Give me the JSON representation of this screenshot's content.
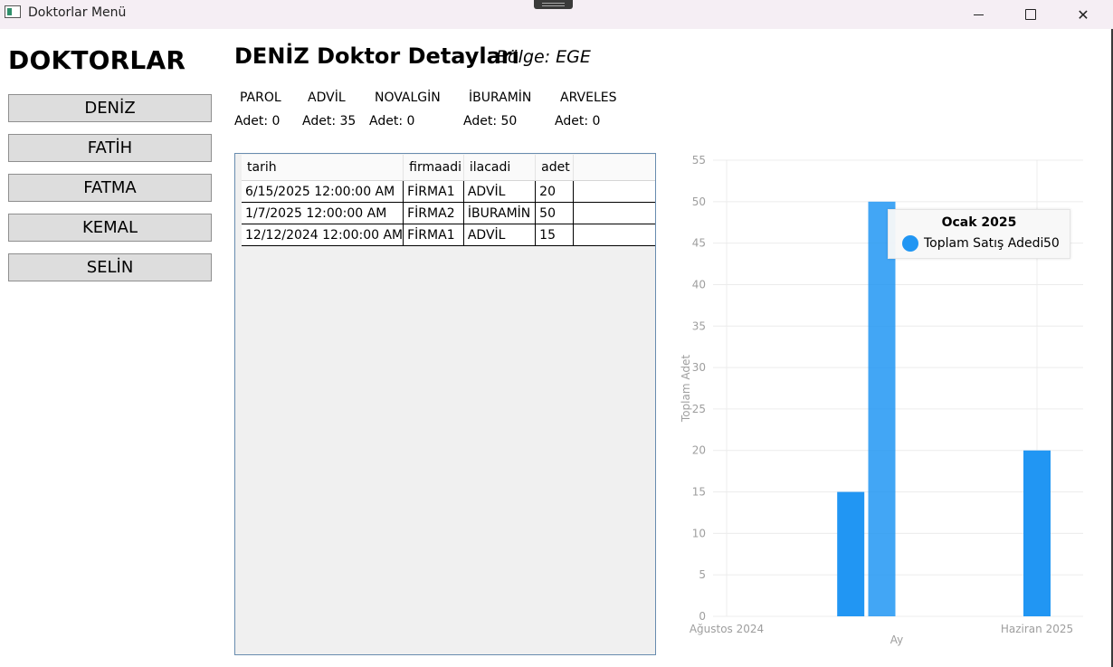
{
  "window": {
    "title": "Doktorlar Menü",
    "controls": {
      "minimize": "minimize-icon",
      "maximize": "maximize-icon",
      "close": "✕"
    }
  },
  "sidebar": {
    "heading": "DOKTORLAR",
    "doctors": [
      "DENİZ",
      "FATİH",
      "FATMA",
      "KEMAL",
      "SELİN"
    ]
  },
  "detail": {
    "title": "DENİZ Doktor Detayları",
    "region": "Bölge: EGE",
    "medicines": [
      {
        "name": "PAROL",
        "count": "Adet: 0"
      },
      {
        "name": "ADVİL",
        "count": "Adet: 35"
      },
      {
        "name": "NOVALGİN",
        "count": "Adet: 0"
      },
      {
        "name": "İBURAMİN",
        "count": "Adet: 50"
      },
      {
        "name": "ARVELES",
        "count": "Adet: 0"
      }
    ]
  },
  "grid": {
    "columns": [
      "tarih",
      "firmaadi",
      "ilacadi",
      "adet"
    ],
    "rows": [
      [
        "6/15/2025 12:00:00 AM",
        "FİRMA1",
        "ADVİL",
        "20"
      ],
      [
        "1/7/2025 12:00:00 AM",
        "FİRMA2",
        "İBURAMİN",
        "50"
      ],
      [
        "12/12/2024 12:00:00 AM",
        "FİRMA1",
        "ADVİL",
        "15"
      ]
    ]
  },
  "chart_data": {
    "type": "bar",
    "ylabel": "Toplam Adet",
    "xlabel": "Ay",
    "ylim": [
      0,
      55
    ],
    "yticks": [
      0,
      5,
      10,
      15,
      20,
      25,
      30,
      35,
      40,
      45,
      50,
      55
    ],
    "xtick_labels": [
      "Ağustos 2024",
      "Haziran 2025"
    ],
    "grid": true,
    "series": [
      {
        "name": "Toplam Satış Adedi",
        "color": "#2196f3",
        "points": [
          {
            "x": "Aralık 2024",
            "y": 15
          },
          {
            "x": "Ocak 2025",
            "y": 50
          },
          {
            "x": "Haziran 2025",
            "y": 20
          }
        ]
      }
    ],
    "tooltip": {
      "title": "Ocak 2025",
      "label": "Toplam Satış Adedi",
      "value": "50"
    }
  }
}
